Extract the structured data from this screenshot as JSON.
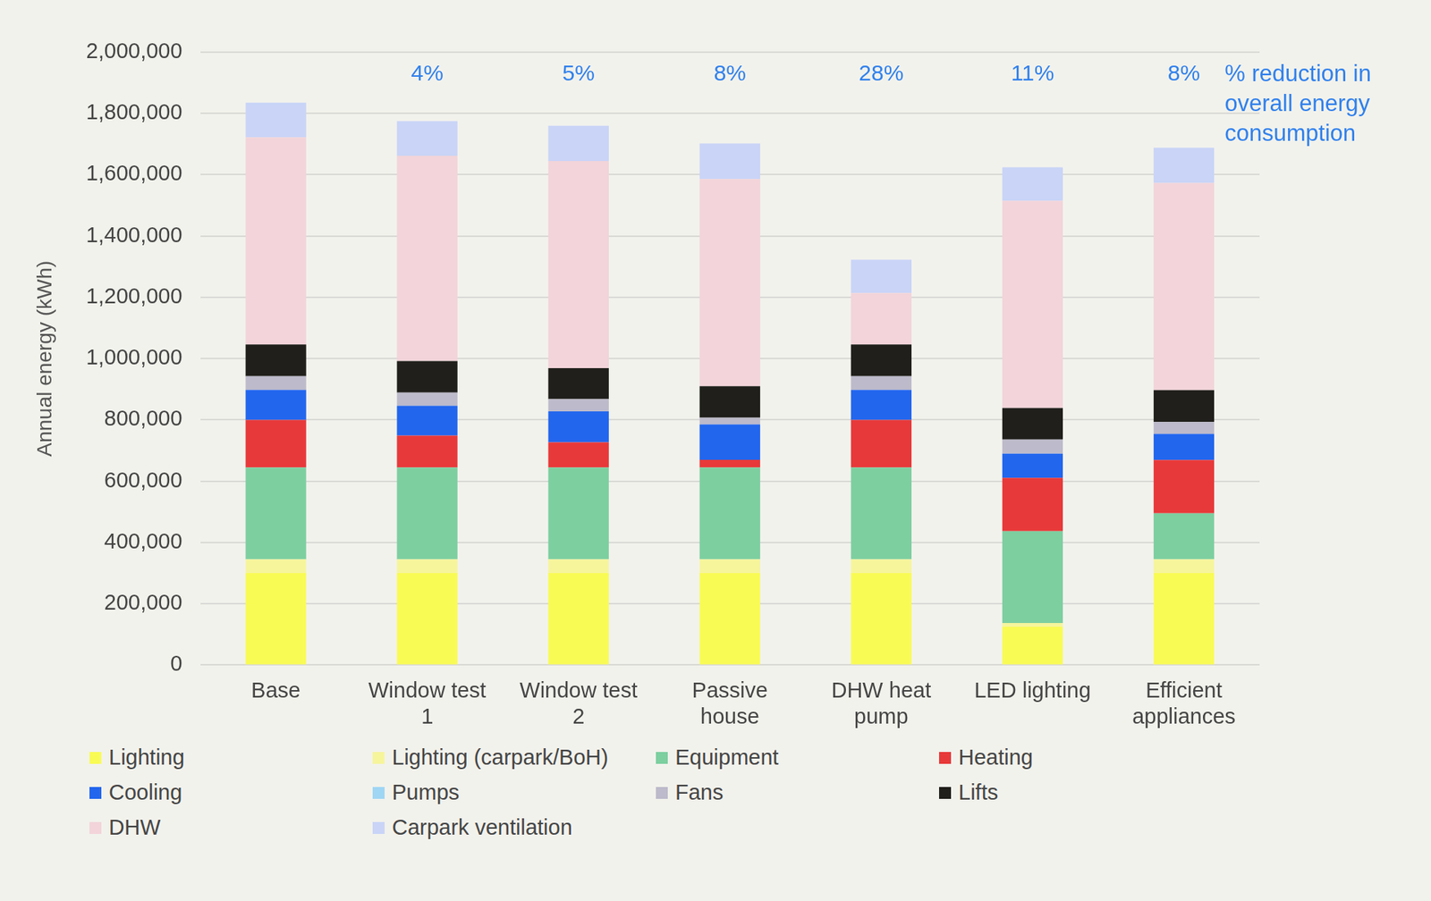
{
  "chart_data": {
    "type": "bar",
    "stacked": true,
    "grid": true,
    "legend": "bottom",
    "y_label": "Annual energy (kWh)",
    "categories": [
      "Base",
      "Window test 1",
      "Window test 2",
      "Passive house",
      "DHW heat pump",
      "LED lighting",
      "Efficient appliances"
    ],
    "series": [
      {
        "name": "Lighting",
        "color": "#f9fb55",
        "values": [
          300000,
          300000,
          300000,
          300000,
          300000,
          125000,
          300000
        ]
      },
      {
        "name": "Lighting (carpark/BoH)",
        "color": "#f6f59c",
        "values": [
          45000,
          45000,
          45000,
          45000,
          45000,
          12000,
          45000
        ]
      },
      {
        "name": "Equipment",
        "color": "#7dcfa0",
        "values": [
          300000,
          300000,
          300000,
          300000,
          300000,
          300000,
          150000
        ]
      },
      {
        "name": "Heating",
        "color": "#e8393a",
        "values": [
          155000,
          104000,
          82000,
          25000,
          155000,
          174000,
          174000
        ]
      },
      {
        "name": "Cooling",
        "color": "#2266ee",
        "values": [
          98000,
          97000,
          101000,
          115000,
          98000,
          79000,
          85000
        ]
      },
      {
        "name": "Pumps",
        "color": "#9fd6f4",
        "values": [
          0,
          0,
          0,
          0,
          0,
          0,
          0
        ]
      },
      {
        "name": "Fans",
        "color": "#bdbacb",
        "values": [
          45000,
          43000,
          40000,
          22000,
          45000,
          46000,
          39000
        ]
      },
      {
        "name": "Lifts",
        "color": "#201f1b",
        "values": [
          103000,
          103000,
          101000,
          103000,
          103000,
          103000,
          104000
        ]
      },
      {
        "name": "DHW",
        "color": "#f2d4da",
        "values": [
          676000,
          670000,
          676000,
          676000,
          168000,
          676000,
          676000
        ]
      },
      {
        "name": "Carpark ventilation",
        "color": "#c9d4f7",
        "values": [
          113000,
          113000,
          115000,
          116000,
          109000,
          109000,
          115000
        ]
      }
    ],
    "ylim": [
      0,
      2000000
    ],
    "yticks": [
      0,
      {
        "value": 200000,
        "label": "200,000"
      },
      {
        "value": 400000,
        "label": "400,000"
      },
      {
        "value": 600000,
        "label": "600,000"
      },
      {
        "value": 800000,
        "label": "800,000"
      },
      {
        "value": 1000000,
        "label": "1,000,000"
      },
      {
        "value": 1200000,
        "label": "1,200,000"
      },
      {
        "value": 1400000,
        "label": "1,400,000"
      },
      {
        "value": 1600000,
        "label": "1,600,000"
      },
      {
        "value": 1800000,
        "label": "1,800,000"
      },
      {
        "value": 2000000,
        "label": "2,000,000"
      }
    ],
    "annotations": {
      "bar_labels": [
        null,
        "4%",
        "5%",
        "8%",
        "28%",
        "11%",
        "8%"
      ],
      "note": [
        "% reduction in",
        "overall energy",
        "consumption"
      ]
    }
  }
}
